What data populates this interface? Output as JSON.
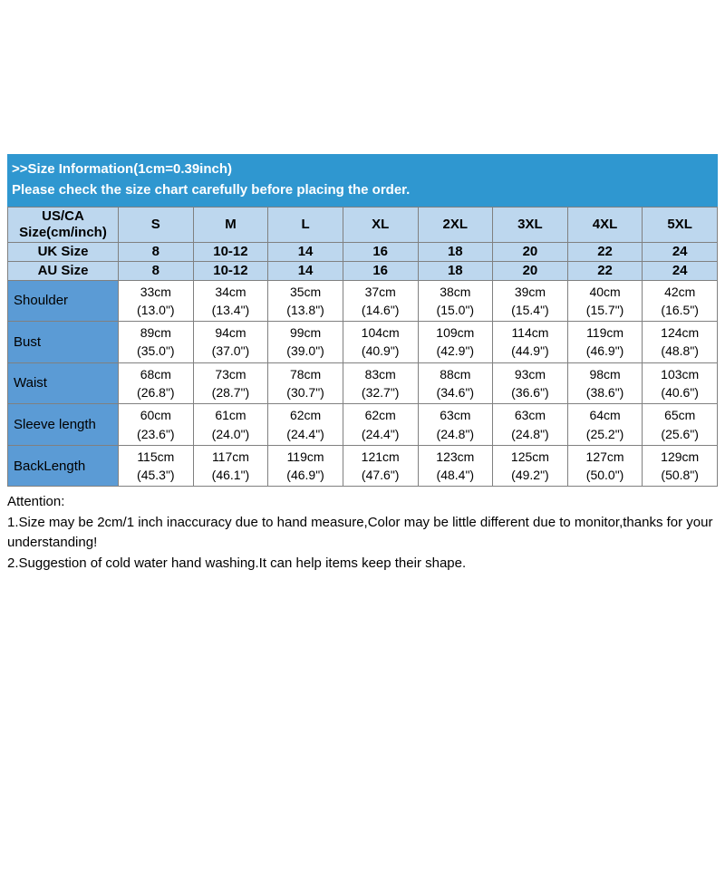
{
  "banner": {
    "title": ">>Size Information(1cm=0.39inch)",
    "subtitle": "Please check the size chart carefully before placing the order."
  },
  "size_table": {
    "corner_line1": "US/CA",
    "corner_line2": "Size(cm/inch)",
    "size_labels": [
      "S",
      "M",
      "L",
      "XL",
      "2XL",
      "3XL",
      "4XL",
      "5XL"
    ],
    "region_rows": [
      {
        "label": "UK Size",
        "values": [
          "8",
          "10-12",
          "14",
          "16",
          "18",
          "20",
          "22",
          "24"
        ]
      },
      {
        "label": "AU Size",
        "values": [
          "8",
          "10-12",
          "14",
          "16",
          "18",
          "20",
          "22",
          "24"
        ]
      }
    ],
    "measurement_rows": [
      {
        "label": "Shoulder",
        "cells": [
          [
            "33cm",
            "(13.0\")"
          ],
          [
            "34cm",
            "(13.4\")"
          ],
          [
            "35cm",
            "(13.8\")"
          ],
          [
            "37cm",
            "(14.6\")"
          ],
          [
            "38cm",
            "(15.0\")"
          ],
          [
            "39cm",
            "(15.4\")"
          ],
          [
            "40cm",
            "(15.7\")"
          ],
          [
            "42cm",
            "(16.5\")"
          ]
        ]
      },
      {
        "label": "Bust",
        "cells": [
          [
            "89cm",
            "(35.0\")"
          ],
          [
            "94cm",
            "(37.0\")"
          ],
          [
            "99cm",
            "(39.0\")"
          ],
          [
            "104cm",
            "(40.9\")"
          ],
          [
            "109cm",
            "(42.9\")"
          ],
          [
            "114cm",
            "(44.9\")"
          ],
          [
            "119cm",
            "(46.9\")"
          ],
          [
            "124cm",
            "(48.8\")"
          ]
        ]
      },
      {
        "label": "Waist",
        "cells": [
          [
            "68cm",
            "(26.8\")"
          ],
          [
            "73cm",
            "(28.7\")"
          ],
          [
            "78cm",
            "(30.7\")"
          ],
          [
            "83cm",
            "(32.7\")"
          ],
          [
            "88cm",
            "(34.6\")"
          ],
          [
            "93cm",
            "(36.6\")"
          ],
          [
            "98cm",
            "(38.6\")"
          ],
          [
            "103cm",
            "(40.6\")"
          ]
        ]
      },
      {
        "label": "Sleeve length",
        "cells": [
          [
            "60cm",
            "(23.6\")"
          ],
          [
            "61cm",
            "(24.0\")"
          ],
          [
            "62cm",
            "(24.4\")"
          ],
          [
            "62cm",
            "(24.4\")"
          ],
          [
            "63cm",
            "(24.8\")"
          ],
          [
            "63cm",
            "(24.8\")"
          ],
          [
            "64cm",
            "(25.2\")"
          ],
          [
            "65cm",
            "(25.6\")"
          ]
        ]
      },
      {
        "label": "BackLength",
        "cells": [
          [
            "115cm",
            "(45.3\")"
          ],
          [
            "117cm",
            "(46.1\")"
          ],
          [
            "119cm",
            "(46.9\")"
          ],
          [
            "121cm",
            "(47.6\")"
          ],
          [
            "123cm",
            "(48.4\")"
          ],
          [
            "125cm",
            "(49.2\")"
          ],
          [
            "127cm",
            "(50.0\")"
          ],
          [
            "129cm",
            "(50.8\")"
          ]
        ]
      }
    ]
  },
  "attention": {
    "heading": "Attention:",
    "lines": [
      "1.Size may be 2cm/1 inch inaccuracy due to hand measure,Color may be little different due to monitor,thanks for your understanding!",
      "2.Suggestion of cold water hand washing.It can help items keep their shape."
    ]
  },
  "colors": {
    "banner_bg": "#2f97d0",
    "header_bg": "#bdd7ee",
    "label_bg": "#5b9bd5",
    "border": "#808080"
  },
  "chart_data": {
    "type": "table",
    "title": ">>Size Information(1cm=0.39inch)",
    "subtitle": "Please check the size chart carefully before placing the order.",
    "columns": [
      "US/CA Size(cm/inch)",
      "S",
      "M",
      "L",
      "XL",
      "2XL",
      "3XL",
      "4XL",
      "5XL"
    ],
    "rows": [
      [
        "UK Size",
        "8",
        "10-12",
        "14",
        "16",
        "18",
        "20",
        "22",
        "24"
      ],
      [
        "AU Size",
        "8",
        "10-12",
        "14",
        "16",
        "18",
        "20",
        "22",
        "24"
      ],
      [
        "Shoulder",
        "33cm (13.0\")",
        "34cm (13.4\")",
        "35cm (13.8\")",
        "37cm (14.6\")",
        "38cm (15.0\")",
        "39cm (15.4\")",
        "40cm (15.7\")",
        "42cm (16.5\")"
      ],
      [
        "Bust",
        "89cm (35.0\")",
        "94cm (37.0\")",
        "99cm (39.0\")",
        "104cm (40.9\")",
        "109cm (42.9\")",
        "114cm (44.9\")",
        "119cm (46.9\")",
        "124cm (48.8\")"
      ],
      [
        "Waist",
        "68cm (26.8\")",
        "73cm (28.7\")",
        "78cm (30.7\")",
        "83cm (32.7\")",
        "88cm (34.6\")",
        "93cm (36.6\")",
        "98cm (38.6\")",
        "103cm (40.6\")"
      ],
      [
        "Sleeve length",
        "60cm (23.6\")",
        "61cm (24.0\")",
        "62cm (24.4\")",
        "62cm (24.4\")",
        "63cm (24.8\")",
        "63cm (24.8\")",
        "64cm (25.2\")",
        "65cm (25.6\")"
      ],
      [
        "BackLength",
        "115cm (45.3\")",
        "117cm (46.1\")",
        "119cm (46.9\")",
        "121cm (47.6\")",
        "123cm (48.4\")",
        "125cm (49.2\")",
        "127cm (50.0\")",
        "129cm (50.8\")"
      ]
    ]
  }
}
